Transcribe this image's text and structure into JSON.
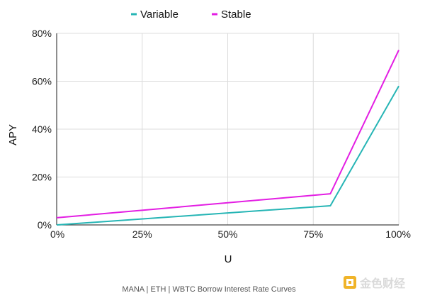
{
  "chart_data": {
    "type": "line",
    "x": [
      0,
      80,
      100
    ],
    "series": [
      {
        "name": "Variable",
        "color": "#26b5b5",
        "values": [
          0,
          8,
          58
        ]
      },
      {
        "name": "Stable",
        "color": "#e31ee3",
        "values": [
          3,
          13,
          73
        ]
      }
    ],
    "xlabel": "U",
    "ylabel": "APY",
    "xlim": [
      0,
      100
    ],
    "ylim": [
      0,
      80
    ],
    "xticks": [
      0,
      25,
      50,
      75,
      100
    ],
    "xtick_labels": [
      "0%",
      "25%",
      "50%",
      "75%",
      "100%"
    ],
    "yticks": [
      0,
      20,
      40,
      60,
      80
    ],
    "ytick_labels": [
      "0%",
      "20%",
      "40%",
      "60%",
      "80%"
    ],
    "grid": true,
    "legend": "top-center",
    "caption": "MANA | ETH | WBTC Borrow Interest Rate Curves"
  },
  "watermark": {
    "text": "金色财经",
    "icon": "jinse-logo-icon",
    "color": "#f0b429"
  }
}
